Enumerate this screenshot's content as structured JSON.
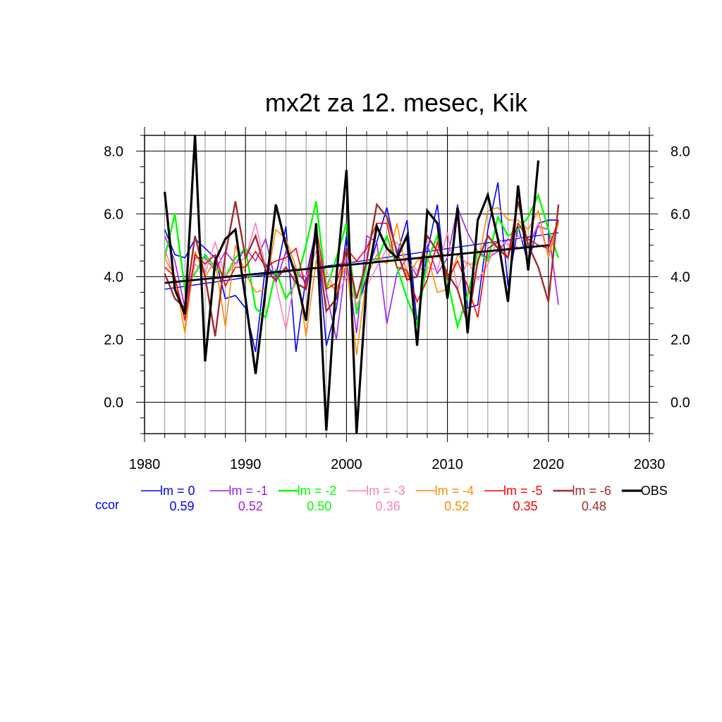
{
  "chart_data": {
    "type": "line",
    "title": "mx2t za 12. mesec, Kik",
    "xlabel": "",
    "ylabel": "",
    "xlim": [
      1980,
      2030
    ],
    "ylim": [
      -1,
      8.5
    ],
    "x_ticks": [
      "1980",
      "1990",
      "2000",
      "2010",
      "2020",
      "2030"
    ],
    "y_ticks": [
      "0.0",
      "2.0",
      "4.0",
      "6.0",
      "8.0"
    ],
    "grid": true,
    "ccor_label": "ccor",
    "years": [
      1982,
      1983,
      1984,
      1985,
      1986,
      1987,
      1988,
      1989,
      1990,
      1991,
      1992,
      1993,
      1994,
      1995,
      1996,
      1997,
      1998,
      1999,
      2000,
      2001,
      2002,
      2003,
      2004,
      2005,
      2006,
      2007,
      2008,
      2009,
      2010,
      2011,
      2012,
      2013,
      2014,
      2015,
      2016,
      2017,
      2018,
      2019,
      2020,
      2021
    ],
    "series": [
      {
        "name": "lm = 0",
        "color": "#0000ff",
        "width": 1.6,
        "ccor": "0.59",
        "values": [
          5.5,
          4.7,
          4.6,
          5.2,
          4.9,
          4.6,
          3.3,
          3.4,
          3.0,
          1.6,
          4.4,
          4.0,
          5.6,
          1.6,
          4.0,
          5.5,
          1.8,
          3.0,
          5.3,
          2.9,
          4.0,
          5.1,
          6.2,
          4.7,
          5.8,
          2.5,
          4.8,
          6.3,
          3.3,
          6.3,
          3.0,
          3.1,
          5.5,
          7.0,
          3.7,
          5.6,
          4.4,
          5.7,
          5.8,
          5.8
        ],
        "trend": [
          [
            1982,
            3.6
          ],
          [
            2021,
            5.4
          ]
        ]
      },
      {
        "name": "lm = -1",
        "color": "#a020f0",
        "width": 1.6,
        "ccor": "0.52",
        "values": [
          5.3,
          4.5,
          3.0,
          4.6,
          4.6,
          4.2,
          4.8,
          4.4,
          4.9,
          4.5,
          5.2,
          3.8,
          4.8,
          4.2,
          3.8,
          5.2,
          3.5,
          2.0,
          4.6,
          2.2,
          5.3,
          5.1,
          2.5,
          4.1,
          4.6,
          4.0,
          5.0,
          4.1,
          4.6,
          6.2,
          5.4,
          4.8,
          4.6,
          4.8,
          5.2,
          4.9,
          5.0,
          5.6,
          5.5,
          3.1
        ]
      },
      {
        "name": "lm = -2",
        "color": "#00ff00",
        "width": 2.4,
        "ccor": "0.50",
        "values": [
          4.6,
          6.0,
          3.6,
          4.1,
          4.7,
          4.3,
          4.0,
          4.6,
          4.9,
          3.0,
          2.7,
          4.2,
          3.3,
          3.8,
          5.0,
          6.4,
          3.6,
          4.6,
          5.7,
          2.8,
          4.4,
          4.5,
          5.3,
          4.3,
          3.3,
          2.5,
          4.5,
          5.3,
          3.9,
          2.4,
          3.4,
          4.8,
          4.5,
          5.9,
          5.3,
          5.5,
          5.9,
          6.6,
          5.5,
          4.6
        ]
      },
      {
        "name": "lm = -3",
        "color": "#ff80c0",
        "width": 1.6,
        "ccor": "0.36",
        "values": [
          4.9,
          3.9,
          2.8,
          4.4,
          4.1,
          5.1,
          4.0,
          4.4,
          4.6,
          5.7,
          4.3,
          3.8,
          2.3,
          4.2,
          4.0,
          4.8,
          4.2,
          3.4,
          4.0,
          3.1,
          3.7,
          4.3,
          4.9,
          5.1,
          4.5,
          4.2,
          4.3,
          4.2,
          5.4,
          3.6,
          4.5,
          3.9,
          4.4,
          5.2,
          5.0,
          5.3,
          5.0,
          5.7,
          4.7,
          5.8
        ]
      },
      {
        "name": "lm = -4",
        "color": "#ff8c00",
        "width": 1.6,
        "ccor": "0.52",
        "values": [
          4.6,
          4.0,
          2.2,
          4.8,
          4.0,
          4.5,
          2.4,
          5.0,
          4.1,
          3.5,
          3.6,
          5.5,
          5.2,
          4.3,
          2.1,
          4.5,
          3.8,
          3.6,
          4.4,
          1.5,
          4.0,
          4.7,
          4.4,
          5.7,
          4.0,
          4.5,
          4.7,
          3.5,
          3.6,
          4.7,
          4.4,
          4.4,
          6.1,
          6.2,
          5.8,
          5.8,
          5.5,
          6.1,
          4.6,
          5.7
        ]
      },
      {
        "name": "lm = -5",
        "color": "#ff0000",
        "width": 1.6,
        "ccor": "0.35",
        "values": [
          4.3,
          4.0,
          2.6,
          4.7,
          4.4,
          4.7,
          3.7,
          4.3,
          4.3,
          4.8,
          4.3,
          4.5,
          4.6,
          4.9,
          3.6,
          5.6,
          3.6,
          3.8,
          4.9,
          4.5,
          4.9,
          5.7,
          5.7,
          4.3,
          4.2,
          3.2,
          3.9,
          5.1,
          3.9,
          4.5,
          3.7,
          2.7,
          4.9,
          5.1,
          4.6,
          5.7,
          5.2,
          5.0,
          4.9,
          5.8
        ]
      },
      {
        "name": "lm = -6",
        "color": "#a52a2a",
        "width": 2.4,
        "ccor": "0.48",
        "values": [
          4.1,
          3.3,
          3.0,
          5.3,
          4.0,
          2.1,
          4.7,
          6.4,
          4.6,
          5.3,
          4.2,
          3.9,
          4.3,
          3.8,
          3.6,
          5.3,
          2.9,
          3.3,
          4.9,
          3.3,
          4.5,
          6.3,
          5.9,
          4.8,
          3.9,
          4.0,
          5.3,
          4.8,
          4.1,
          3.6,
          2.5,
          4.5,
          5.3,
          4.9,
          4.6,
          6.4,
          5.0,
          4.3,
          3.2,
          6.3
        ]
      },
      {
        "name": "OBS",
        "color": "#000000",
        "width": 3.2,
        "ccor": "",
        "values": [
          6.7,
          3.6,
          2.8,
          8.5,
          1.3,
          4.5,
          5.2,
          5.5,
          3.3,
          0.9,
          3.6,
          6.3,
          5.0,
          4.0,
          2.6,
          5.7,
          -0.9,
          4.0,
          7.4,
          -1.0,
          3.8,
          5.6,
          4.9,
          4.6,
          5.3,
          1.8,
          6.1,
          5.7,
          3.3,
          6.2,
          2.2,
          5.8,
          6.6,
          5.2,
          3.2,
          6.9,
          4.2,
          7.7
        ],
        "trend": [
          [
            1982,
            3.8
          ],
          [
            2020,
            5.0
          ]
        ]
      }
    ]
  }
}
